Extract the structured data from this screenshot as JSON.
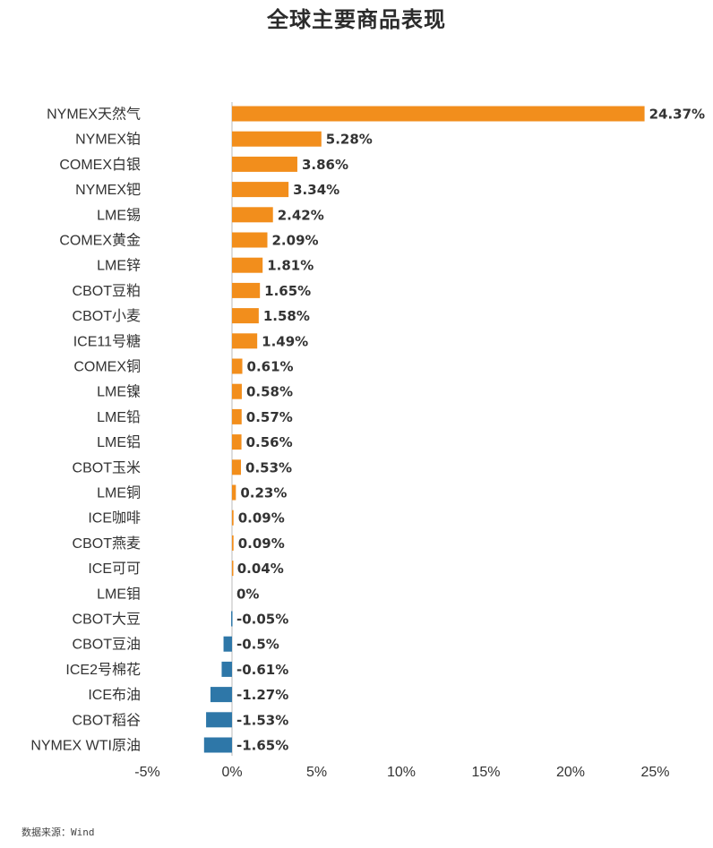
{
  "chart_data": {
    "type": "bar",
    "orientation": "horizontal",
    "title": "全球主要商品表现",
    "categories": [
      "NYMEX天然气",
      "NYMEX铂",
      "COMEX白银",
      "NYMEX钯",
      "LME锡",
      "COMEX黄金",
      "LME锌",
      "CBOT豆粕",
      "CBOT小麦",
      "ICE11号糖",
      "COMEX铜",
      "LME镍",
      "LME铅",
      "LME铝",
      "CBOT玉米",
      "LME铜",
      "ICE咖啡",
      "CBOT燕麦",
      "ICE可可",
      "LME钼",
      "CBOT大豆",
      "CBOT豆油",
      "ICE2号棉花",
      "ICE布油",
      "CBOT稻谷",
      "NYMEX WTI原油"
    ],
    "values": [
      24.37,
      5.28,
      3.86,
      3.34,
      2.42,
      2.09,
      1.81,
      1.65,
      1.58,
      1.49,
      0.61,
      0.58,
      0.57,
      0.56,
      0.53,
      0.23,
      0.09,
      0.09,
      0.04,
      0,
      -0.05,
      -0.5,
      -0.61,
      -1.27,
      -1.53,
      -1.65
    ],
    "value_labels": [
      "24.37%",
      "5.28%",
      "3.86%",
      "3.34%",
      "2.42%",
      "2.09%",
      "1.81%",
      "1.65%",
      "1.58%",
      "1.49%",
      "0.61%",
      "0.58%",
      "0.57%",
      "0.56%",
      "0.53%",
      "0.23%",
      "0.09%",
      "0.09%",
      "0.04%",
      "0%",
      "-0.05%",
      "-0.5%",
      "-0.61%",
      "-1.27%",
      "-1.53%",
      "-1.65%"
    ],
    "xlim": [
      -5,
      25
    ],
    "x_ticks": [
      -5,
      0,
      5,
      10,
      15,
      20,
      25
    ],
    "x_tick_labels": [
      "-5%",
      "0%",
      "5%",
      "10%",
      "15%",
      "20%",
      "25%"
    ],
    "grid": false,
    "colors": {
      "positive": "#F28E1C",
      "negative": "#2E77A8",
      "axis": "#BBBBBB"
    }
  },
  "footer": {
    "source": "数据来源：Wind"
  }
}
